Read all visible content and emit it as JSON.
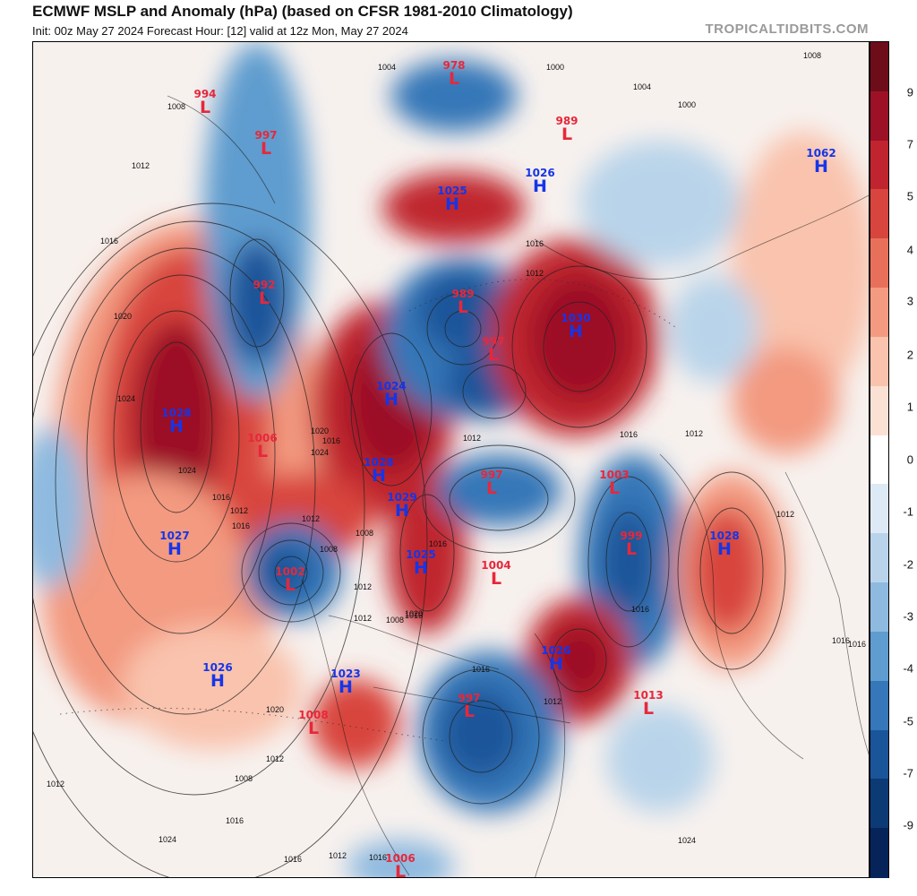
{
  "header": {
    "title": "ECMWF MSLP and Anomaly (hPa) (based on CFSR 1981-2010 Climatology)",
    "subtitle": "Init: 00z May 27 2024   Forecast Hour: [12]   valid at 12z Mon, May 27 2024",
    "credit": "TROPICALTIDBITS.COM"
  },
  "colorbar": {
    "ticks": [
      "9",
      "7",
      "5",
      "4",
      "3",
      "2",
      "1",
      "0",
      "-1",
      "-2",
      "-3",
      "-4",
      "-5",
      "-7",
      "-9"
    ],
    "colors": [
      "#6e0d1a",
      "#9c1126",
      "#c0252f",
      "#d8453e",
      "#e8705a",
      "#f39a80",
      "#f9c3ad",
      "#fbe1d4",
      "#ffffff",
      "#dde9f4",
      "#b9d4ea",
      "#8fbadf",
      "#5f9ccf",
      "#3577b8",
      "#1a559a",
      "#0c3a75",
      "#06245a"
    ]
  },
  "pressure_systems": [
    {
      "type": "L",
      "value": "994"
    },
    {
      "type": "L",
      "value": "978"
    },
    {
      "type": "L",
      "value": "997"
    },
    {
      "type": "L",
      "value": "989"
    },
    {
      "type": "H",
      "value": "1062"
    },
    {
      "type": "H",
      "value": "1025"
    },
    {
      "type": "H",
      "value": "1026"
    },
    {
      "type": "L",
      "value": "992"
    },
    {
      "type": "L",
      "value": "989"
    },
    {
      "type": "H",
      "value": "1030"
    },
    {
      "type": "L",
      "value": "997"
    },
    {
      "type": "H",
      "value": "1024"
    },
    {
      "type": "H",
      "value": "1028"
    },
    {
      "type": "L",
      "value": "1006"
    },
    {
      "type": "H",
      "value": "1028"
    },
    {
      "type": "L",
      "value": "997"
    },
    {
      "type": "L",
      "value": "1003"
    },
    {
      "type": "H",
      "value": "1029"
    },
    {
      "type": "H",
      "value": "1027"
    },
    {
      "type": "L",
      "value": "999"
    },
    {
      "type": "H",
      "value": "1028"
    },
    {
      "type": "L",
      "value": "1002"
    },
    {
      "type": "H",
      "value": "1025"
    },
    {
      "type": "L",
      "value": "1004"
    },
    {
      "type": "H",
      "value": "1026"
    },
    {
      "type": "H",
      "value": "1026"
    },
    {
      "type": "H",
      "value": "1023"
    },
    {
      "type": "L",
      "value": "997"
    },
    {
      "type": "L",
      "value": "1013"
    },
    {
      "type": "L",
      "value": "1008"
    },
    {
      "type": "L",
      "value": "1006"
    }
  ],
  "isobar_labels": [
    "1008",
    "1004",
    "1000",
    "1008",
    "1004",
    "1000",
    "1012",
    "1016",
    "1020",
    "1024",
    "1024",
    "1016",
    "1012",
    "1016",
    "1020",
    "1024",
    "1016",
    "1012",
    "1008",
    "1012",
    "1016",
    "1020",
    "1016",
    "1012",
    "1008",
    "1016",
    "1012",
    "1016",
    "1012",
    "1016",
    "1012",
    "1016",
    "1020",
    "1012",
    "1008",
    "1012",
    "1016",
    "1024",
    "1016",
    "1012",
    "1016",
    "1008",
    "1012",
    "1016",
    "1012",
    "1016",
    "1024",
    "1016"
  ]
}
